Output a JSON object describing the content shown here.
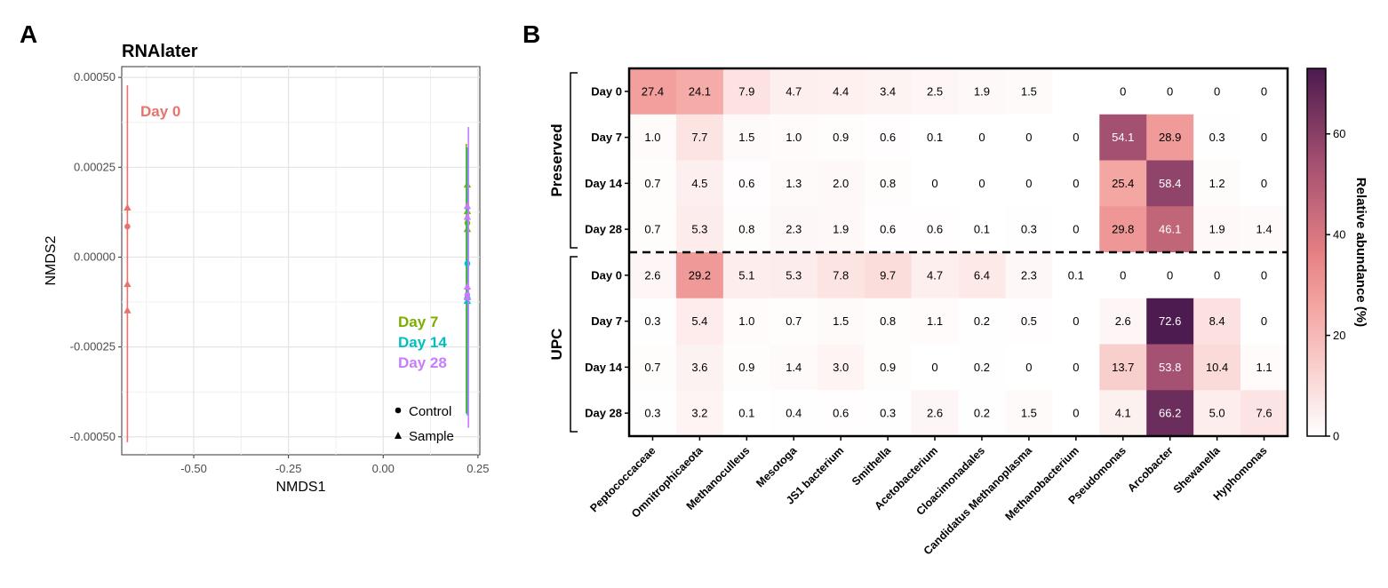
{
  "panel_labels": {
    "a": "A",
    "b": "B"
  },
  "chart_data": [
    {
      "type": "scatter",
      "title": "RNAlater",
      "xlabel": "NMDS1",
      "ylabel": "NMDS2",
      "xlim": [
        -0.69,
        0.255
      ],
      "ylim": [
        -0.00055,
        0.00053
      ],
      "xticks": [
        -0.5,
        -0.25,
        0.0,
        0.25
      ],
      "xtick_labels": [
        "-0.50",
        "-0.25",
        "0.00",
        "0.25"
      ],
      "yticks": [
        0.0005,
        0.00025,
        0.0,
        -0.00025,
        -0.0005
      ],
      "ytick_labels": [
        "0.00050",
        "0.00025",
        "0.00000",
        "-0.00025",
        "-0.00050"
      ],
      "grid": true,
      "legend": {
        "shape_entries": [
          {
            "shape": "circle",
            "label": "Control"
          },
          {
            "shape": "triangle",
            "label": "Sample"
          }
        ],
        "position": "bottom-right"
      },
      "groups": [
        {
          "name": "Day 0",
          "color": "#E8736C",
          "label": "Day 0",
          "errorbar": {
            "x": -0.675,
            "ymin": -0.000515,
            "ymax": 0.000478
          },
          "points": [
            {
              "x": -0.675,
              "y": 0.000138,
              "shape": "triangle"
            },
            {
              "x": -0.675,
              "y": 8.5e-05,
              "shape": "circle"
            },
            {
              "x": -0.675,
              "y": -7.5e-05,
              "shape": "triangle"
            },
            {
              "x": -0.675,
              "y": -0.000148,
              "shape": "triangle"
            }
          ]
        },
        {
          "name": "Day 7",
          "color": "#7CAE00",
          "label": "Day 7",
          "errorbar": {
            "x": 0.222,
            "ymin": -0.000435,
            "ymax": 0.000315
          },
          "points": [
            {
              "x": 0.222,
              "y": 0.000202,
              "shape": "triangle"
            },
            {
              "x": 0.222,
              "y": 0.000128,
              "shape": "triangle"
            },
            {
              "x": 0.222,
              "y": 9.5e-05,
              "shape": "circle"
            },
            {
              "x": 0.222,
              "y": 7.8e-05,
              "shape": "triangle"
            }
          ]
        },
        {
          "name": "Day 14",
          "color": "#00BFC4",
          "label": "Day 14",
          "errorbar": {
            "x": 0.222,
            "ymin": -0.00044,
            "ymax": 0.000305
          },
          "points": [
            {
              "x": 0.222,
              "y": -1.8e-05,
              "shape": "circle"
            },
            {
              "x": 0.222,
              "y": -0.000108,
              "shape": "triangle"
            },
            {
              "x": 0.222,
              "y": -0.000122,
              "shape": "triangle"
            }
          ]
        },
        {
          "name": "Day 28",
          "color": "#C77CFF",
          "label": "Day 28",
          "errorbar": {
            "x": 0.222,
            "ymin": -0.000475,
            "ymax": 0.000362
          },
          "points": [
            {
              "x": 0.222,
              "y": 0.000142,
              "shape": "triangle"
            },
            {
              "x": 0.222,
              "y": 0.000112,
              "shape": "triangle"
            },
            {
              "x": 0.222,
              "y": -8.2e-05,
              "shape": "triangle"
            },
            {
              "x": 0.222,
              "y": -0.000105,
              "shape": "circle"
            },
            {
              "x": 0.222,
              "y": -0.000112,
              "shape": "triangle"
            }
          ]
        }
      ]
    },
    {
      "type": "heatmap",
      "colorbar": {
        "title": "Relative abundance (%)",
        "min": 0,
        "max": 73,
        "ticks": [
          0,
          20,
          40,
          60
        ],
        "stops": [
          "#FFFFFF",
          "#F4A3A0",
          "#E48084",
          "#A24E70",
          "#4B1A4E"
        ]
      },
      "columns": [
        "Peptococcaceae",
        "Omnitrophicaeota",
        "Methanoculleus",
        "Mesotoga",
        "JS1 bacterium",
        "Smithella",
        "Acetobacterium",
        "Cloacimonadales",
        "Candidatus Methanoplasma",
        "Methanobacterium",
        "Pseudomonas",
        "Arcobacter",
        "Shewanella",
        "Hyphomonas"
      ],
      "groups": [
        {
          "name": "Preserved",
          "rows": [
            {
              "label": "Day 0",
              "values": [
                27.4,
                24.1,
                7.9,
                4.7,
                4.4,
                3.4,
                2.5,
                1.9,
                1.5,
                null,
                0,
                0,
                0,
                0
              ],
              "labels": [
                "27.4",
                "24.1",
                "7.9",
                "4.7",
                "4.4",
                "3.4",
                "2.5",
                "1.9",
                "1.5",
                "",
                "0",
                "0",
                "0",
                "0"
              ]
            },
            {
              "label": "Day 7",
              "values": [
                1.0,
                7.7,
                1.5,
                1.0,
                0.9,
                0.6,
                0.1,
                0,
                0,
                0,
                54.1,
                28.9,
                0.3,
                0
              ],
              "labels": [
                "1.0",
                "7.7",
                "1.5",
                "1.0",
                "0.9",
                "0.6",
                "0.1",
                "0",
                "0",
                "0",
                "54.1",
                "28.9",
                "0.3",
                "0"
              ]
            },
            {
              "label": "Day 14",
              "values": [
                0.7,
                4.5,
                0.6,
                1.3,
                2.0,
                0.8,
                0,
                0,
                0,
                0,
                25.4,
                58.4,
                1.2,
                0
              ],
              "labels": [
                "0.7",
                "4.5",
                "0.6",
                "1.3",
                "2.0",
                "0.8",
                "0",
                "0",
                "0",
                "0",
                "25.4",
                "58.4",
                "1.2",
                "0"
              ]
            },
            {
              "label": "Day 28",
              "values": [
                0.7,
                5.3,
                0.8,
                2.3,
                1.9,
                0.6,
                0.6,
                0.1,
                0.3,
                0,
                29.8,
                46.1,
                1.9,
                1.4
              ],
              "labels": [
                "0.7",
                "5.3",
                "0.8",
                "2.3",
                "1.9",
                "0.6",
                "0.6",
                "0.1",
                "0.3",
                "0",
                "29.8",
                "46.1",
                "1.9",
                "1.4"
              ]
            }
          ]
        },
        {
          "name": "UPC",
          "rows": [
            {
              "label": "Day 0",
              "values": [
                2.6,
                29.2,
                5.1,
                5.3,
                7.8,
                9.7,
                4.7,
                6.4,
                2.3,
                0.1,
                0,
                0,
                0,
                0
              ],
              "labels": [
                "2.6",
                "29.2",
                "5.1",
                "5.3",
                "7.8",
                "9.7",
                "4.7",
                "6.4",
                "2.3",
                "0.1",
                "0",
                "0",
                "0",
                "0"
              ]
            },
            {
              "label": "Day 7",
              "values": [
                0.3,
                5.4,
                1.0,
                0.7,
                1.5,
                0.8,
                1.1,
                0.2,
                0.5,
                0,
                2.6,
                72.6,
                8.4,
                0
              ],
              "labels": [
                "0.3",
                "5.4",
                "1.0",
                "0.7",
                "1.5",
                "0.8",
                "1.1",
                "0.2",
                "0.5",
                "0",
                "2.6",
                "72.6",
                "8.4",
                "0"
              ]
            },
            {
              "label": "Day 14",
              "values": [
                0.7,
                3.6,
                0.9,
                1.4,
                3.0,
                0.9,
                0,
                0.2,
                0,
                0,
                13.7,
                53.8,
                10.4,
                1.1
              ],
              "labels": [
                "0.7",
                "3.6",
                "0.9",
                "1.4",
                "3.0",
                "0.9",
                "0",
                "0.2",
                "0",
                "0",
                "13.7",
                "53.8",
                "10.4",
                "1.1"
              ]
            },
            {
              "label": "Day 28",
              "values": [
                0.3,
                3.2,
                0.1,
                0.4,
                0.6,
                0.3,
                2.6,
                0.2,
                1.5,
                0,
                4.1,
                66.2,
                5.0,
                7.6
              ],
              "labels": [
                "0.3",
                "3.2",
                "0.1",
                "0.4",
                "0.6",
                "0.3",
                "2.6",
                "0.2",
                "1.5",
                "0",
                "4.1",
                "66.2",
                "5.0",
                "7.6"
              ]
            }
          ]
        }
      ]
    }
  ]
}
